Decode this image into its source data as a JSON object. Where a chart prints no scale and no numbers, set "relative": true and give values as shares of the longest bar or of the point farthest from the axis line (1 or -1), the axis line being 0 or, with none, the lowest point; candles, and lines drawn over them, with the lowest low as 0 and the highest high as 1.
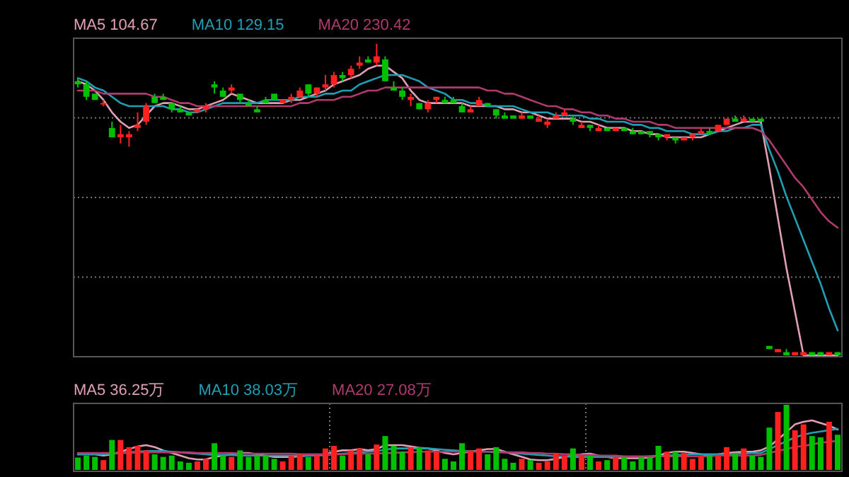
{
  "chart_data": [
    {
      "type": "candlestick",
      "relative": true,
      "grid": "y",
      "legend": "top left",
      "categories": [
        null,
        null,
        null,
        null,
        null,
        null,
        null,
        null,
        null,
        null,
        null,
        null,
        null,
        null,
        null,
        null,
        null,
        null,
        null,
        null,
        null,
        null,
        null,
        null,
        null,
        null,
        null,
        null,
        null,
        null,
        null,
        null,
        null,
        null,
        null,
        null,
        null,
        null,
        null,
        null,
        null,
        null,
        null,
        null,
        null,
        null,
        null,
        null,
        null,
        null,
        null,
        null,
        null,
        null,
        null,
        null,
        null,
        null,
        null,
        null,
        null,
        null,
        null,
        null,
        null,
        null,
        null,
        null,
        null,
        null,
        null,
        null,
        null,
        null,
        null,
        null,
        null,
        null,
        null,
        null,
        null,
        null,
        null,
        null,
        null,
        null,
        null,
        null,
        null,
        null
      ],
      "ohlc": [
        [
          0.88,
          0.89,
          0.86,
          0.87
        ],
        [
          0.87,
          0.88,
          0.82,
          0.83
        ],
        [
          0.84,
          0.84,
          0.82,
          0.82
        ],
        [
          0.81,
          0.82,
          0.8,
          0.81
        ],
        [
          0.73,
          0.75,
          0.7,
          0.7
        ],
        [
          0.7,
          0.74,
          0.68,
          0.71
        ],
        [
          0.7,
          0.72,
          0.67,
          0.71
        ],
        [
          0.73,
          0.78,
          0.72,
          0.74
        ],
        [
          0.75,
          0.81,
          0.74,
          0.8
        ],
        [
          0.83,
          0.84,
          0.81,
          0.81
        ],
        [
          0.83,
          0.84,
          0.82,
          0.82
        ],
        [
          0.81,
          0.81,
          0.78,
          0.79
        ],
        [
          0.79,
          0.8,
          0.78,
          0.78
        ],
        [
          0.78,
          0.78,
          0.77,
          0.77
        ],
        [
          0.78,
          0.79,
          0.78,
          0.79
        ],
        [
          0.79,
          0.81,
          0.78,
          0.8
        ],
        [
          0.87,
          0.88,
          0.84,
          0.86
        ],
        [
          0.85,
          0.86,
          0.83,
          0.83
        ],
        [
          0.85,
          0.87,
          0.84,
          0.86
        ],
        [
          0.84,
          0.84,
          0.81,
          0.82
        ],
        [
          0.81,
          0.82,
          0.8,
          0.8
        ],
        [
          0.79,
          0.8,
          0.78,
          0.78
        ],
        [
          0.82,
          0.83,
          0.81,
          0.81
        ],
        [
          0.84,
          0.84,
          0.82,
          0.82
        ],
        [
          0.81,
          0.82,
          0.81,
          0.82
        ],
        [
          0.82,
          0.84,
          0.81,
          0.83
        ],
        [
          0.83,
          0.86,
          0.83,
          0.85
        ],
        [
          0.87,
          0.87,
          0.83,
          0.84
        ],
        [
          0.84,
          0.86,
          0.83,
          0.86
        ],
        [
          0.86,
          0.9,
          0.85,
          0.87
        ],
        [
          0.87,
          0.91,
          0.86,
          0.9
        ],
        [
          0.9,
          0.91,
          0.88,
          0.89
        ],
        [
          0.9,
          0.93,
          0.89,
          0.92
        ],
        [
          0.93,
          0.96,
          0.92,
          0.94
        ],
        [
          0.95,
          0.96,
          0.94,
          0.94
        ],
        [
          0.94,
          1,
          0.93,
          0.96
        ],
        [
          0.95,
          0.96,
          0.88,
          0.88
        ],
        [
          0.86,
          0.88,
          0.85,
          0.85
        ],
        [
          0.85,
          0.86,
          0.82,
          0.83
        ],
        [
          0.82,
          0.84,
          0.8,
          0.83
        ],
        [
          0.81,
          0.81,
          0.79,
          0.79
        ],
        [
          0.79,
          0.82,
          0.78,
          0.81
        ],
        [
          0.82,
          0.83,
          0.81,
          0.83
        ],
        [
          0.82,
          0.83,
          0.81,
          0.81
        ],
        [
          0.82,
          0.83,
          0.81,
          0.81
        ],
        [
          0.8,
          0.81,
          0.78,
          0.78
        ],
        [
          0.78,
          0.8,
          0.78,
          0.79
        ],
        [
          0.8,
          0.83,
          0.8,
          0.82
        ],
        [
          0.81,
          0.81,
          0.8,
          0.8
        ],
        [
          0.79,
          0.79,
          0.76,
          0.77
        ],
        [
          0.77,
          0.78,
          0.76,
          0.76
        ],
        [
          0.77,
          0.77,
          0.76,
          0.76
        ],
        [
          0.76,
          0.78,
          0.76,
          0.77
        ],
        [
          0.77,
          0.77,
          0.76,
          0.76
        ],
        [
          0.75,
          0.77,
          0.75,
          0.76
        ],
        [
          0.74,
          0.76,
          0.73,
          0.75
        ],
        [
          0.76,
          0.78,
          0.76,
          0.77
        ],
        [
          0.77,
          0.79,
          0.77,
          0.78
        ],
        [
          0.76,
          0.77,
          0.74,
          0.75
        ],
        [
          0.73,
          0.75,
          0.73,
          0.74
        ],
        [
          0.74,
          0.74,
          0.72,
          0.73
        ],
        [
          0.72,
          0.74,
          0.72,
          0.73
        ],
        [
          0.73,
          0.73,
          0.72,
          0.72
        ],
        [
          0.72,
          0.73,
          0.72,
          0.73
        ],
        [
          0.73,
          0.73,
          0.72,
          0.72
        ],
        [
          0.72,
          0.73,
          0.71,
          0.71
        ],
        [
          0.72,
          0.72,
          0.71,
          0.71
        ],
        [
          0.72,
          0.72,
          0.7,
          0.71
        ],
        [
          0.71,
          0.71,
          0.69,
          0.7
        ],
        [
          0.7,
          0.71,
          0.69,
          0.71
        ],
        [
          0.7,
          0.7,
          0.68,
          0.69
        ],
        [
          0.69,
          0.7,
          0.69,
          0.7
        ],
        [
          0.7,
          0.71,
          0.69,
          0.71
        ],
        [
          0.71,
          0.73,
          0.71,
          0.72
        ],
        [
          0.72,
          0.73,
          0.71,
          0.71
        ],
        [
          0.72,
          0.74,
          0.72,
          0.74
        ],
        [
          0.74,
          0.76,
          0.74,
          0.76
        ],
        [
          0.76,
          0.77,
          0.75,
          0.75
        ],
        [
          0.75,
          0.77,
          0.75,
          0.76
        ],
        [
          0.76,
          0.76,
          0.75,
          0.75
        ],
        [
          0.76,
          0.76,
          0.75,
          0.75
        ],
        [
          0.03,
          0.03,
          0.02,
          0.02
        ],
        [
          0.01,
          0.02,
          0.01,
          0.02
        ],
        [
          0.01,
          0.02,
          0,
          0
        ],
        [
          0,
          0.01,
          0,
          0.01
        ],
        [
          0,
          0.01,
          0,
          0.01
        ],
        [
          0.01,
          0.01,
          0,
          0
        ],
        [
          0.01,
          0.01,
          0,
          0
        ],
        [
          0,
          0.01,
          0,
          0.01
        ],
        [
          0.01,
          0.01,
          0,
          0
        ]
      ],
      "colors": [
        "#00c000",
        "#00c000",
        "#00c000",
        "#ff2020",
        "#00c000",
        "#ff2020",
        "#ff2020",
        "#ff2020",
        "#ff2020",
        "#00c000",
        "#00c000",
        "#00c000",
        "#00c000",
        "#00c000",
        "#ff2020",
        "#ff2020",
        "#00c000",
        "#00c000",
        "#ff2020",
        "#00c000",
        "#00c000",
        "#00c000",
        "#00c000",
        "#00c000",
        "#ff2020",
        "#ff2020",
        "#ff2020",
        "#00c000",
        "#ff2020",
        "#ff2020",
        "#ff2020",
        "#00c000",
        "#ff2020",
        "#ff2020",
        "#00c000",
        "#ff2020",
        "#00c000",
        "#00c000",
        "#00c000",
        "#ff2020",
        "#00c000",
        "#ff2020",
        "#ff2020",
        "#00c000",
        "#00c000",
        "#00c000",
        "#ff2020",
        "#ff2020",
        "#00c000",
        "#00c000",
        "#00c000",
        "#00c000",
        "#ff2020",
        "#00c000",
        "#ff2020",
        "#ff2020",
        "#ff2020",
        "#ff2020",
        "#00c000",
        "#ff2020",
        "#00c000",
        "#ff2020",
        "#00c000",
        "#ff2020",
        "#00c000",
        "#00c000",
        "#00c000",
        "#00c000",
        "#00c000",
        "#ff2020",
        "#00c000",
        "#ff2020",
        "#ff2020",
        "#ff2020",
        "#00c000",
        "#ff2020",
        "#ff2020",
        "#00c000",
        "#ff2020",
        "#00c000",
        "#00c000",
        "#00c000",
        "#ff2020",
        "#00c000",
        "#ff2020",
        "#ff2020",
        "#00c000",
        "#00c000",
        "#ff2020",
        "#00c000"
      ],
      "series": [
        {
          "type": "line",
          "name": "MA5 104.67",
          "color": "#e0a0b4",
          "values": [
            0.88,
            0.87,
            0.85,
            0.82,
            0.78,
            0.75,
            0.73,
            0.74,
            0.77,
            0.8,
            0.81,
            0.81,
            0.8,
            0.79,
            0.79,
            0.8,
            0.81,
            0.82,
            0.84,
            0.83,
            0.82,
            0.81,
            0.81,
            0.81,
            0.81,
            0.82,
            0.82,
            0.83,
            0.84,
            0.85,
            0.87,
            0.88,
            0.89,
            0.9,
            0.92,
            0.93,
            0.93,
            0.91,
            0.89,
            0.85,
            0.82,
            0.81,
            0.81,
            0.81,
            0.81,
            0.81,
            0.8,
            0.8,
            0.8,
            0.8,
            0.79,
            0.79,
            0.78,
            0.78,
            0.77,
            0.76,
            0.76,
            0.76,
            0.76,
            0.75,
            0.75,
            0.74,
            0.73,
            0.73,
            0.73,
            0.72,
            0.72,
            0.71,
            0.71,
            0.7,
            0.7,
            0.7,
            0.7,
            0.7,
            0.71,
            0.72,
            0.73,
            0.74,
            0.75,
            0.75,
            0.75,
            0.6,
            0.44,
            0.28,
            0.14,
            0,
            0,
            0,
            0,
            0
          ]
        },
        {
          "type": "line",
          "name": "MA10 129.15",
          "color": "#1f9fb3",
          "values": [
            0.89,
            0.88,
            0.86,
            0.85,
            0.83,
            0.81,
            0.8,
            0.8,
            0.8,
            0.8,
            0.8,
            0.79,
            0.79,
            0.78,
            0.78,
            0.79,
            0.8,
            0.81,
            0.81,
            0.81,
            0.81,
            0.81,
            0.82,
            0.82,
            0.82,
            0.82,
            0.83,
            0.83,
            0.83,
            0.84,
            0.84,
            0.85,
            0.85,
            0.87,
            0.88,
            0.89,
            0.9,
            0.9,
            0.9,
            0.89,
            0.88,
            0.86,
            0.85,
            0.84,
            0.82,
            0.82,
            0.81,
            0.81,
            0.8,
            0.8,
            0.8,
            0.8,
            0.79,
            0.78,
            0.78,
            0.78,
            0.77,
            0.77,
            0.77,
            0.77,
            0.76,
            0.76,
            0.75,
            0.75,
            0.75,
            0.74,
            0.74,
            0.73,
            0.73,
            0.72,
            0.72,
            0.72,
            0.71,
            0.71,
            0.71,
            0.72,
            0.72,
            0.73,
            0.73,
            0.74,
            0.74,
            0.66,
            0.59,
            0.51,
            0.44,
            0.37,
            0.3,
            0.23,
            0.15,
            0.08
          ]
        },
        {
          "type": "line",
          "name": "MA20 230.42",
          "color": "#b03a6e",
          "values": [
            0.85,
            0.85,
            0.85,
            0.84,
            0.84,
            0.84,
            0.84,
            0.84,
            0.84,
            0.83,
            0.83,
            0.82,
            0.81,
            0.81,
            0.8,
            0.8,
            0.8,
            0.8,
            0.8,
            0.8,
            0.8,
            0.8,
            0.8,
            0.8,
            0.8,
            0.8,
            0.81,
            0.81,
            0.82,
            0.82,
            0.82,
            0.83,
            0.83,
            0.84,
            0.85,
            0.85,
            0.86,
            0.86,
            0.86,
            0.86,
            0.86,
            0.86,
            0.86,
            0.86,
            0.86,
            0.86,
            0.86,
            0.86,
            0.85,
            0.85,
            0.84,
            0.84,
            0.83,
            0.82,
            0.81,
            0.8,
            0.8,
            0.79,
            0.79,
            0.78,
            0.78,
            0.77,
            0.77,
            0.76,
            0.76,
            0.75,
            0.75,
            0.75,
            0.74,
            0.74,
            0.73,
            0.73,
            0.73,
            0.73,
            0.73,
            0.73,
            0.73,
            0.73,
            0.73,
            0.73,
            0.72,
            0.69,
            0.65,
            0.61,
            0.57,
            0.54,
            0.5,
            0.46,
            0.43,
            0.41
          ]
        }
      ]
    },
    {
      "type": "bar",
      "relative": true,
      "grid": "x",
      "legend": "top left",
      "categories": [
        null,
        null,
        null,
        null,
        null,
        null,
        null,
        null,
        null,
        null,
        null,
        null,
        null,
        null,
        null,
        null,
        null,
        null,
        null,
        null,
        null,
        null,
        null,
        null,
        null,
        null,
        null,
        null,
        null,
        null,
        null,
        null,
        null,
        null,
        null,
        null,
        null,
        null,
        null,
        null,
        null,
        null,
        null,
        null,
        null,
        null,
        null,
        null,
        null,
        null,
        null,
        null,
        null,
        null,
        null,
        null,
        null,
        null,
        null,
        null,
        null,
        null,
        null,
        null,
        null,
        null,
        null,
        null,
        null,
        null,
        null,
        null,
        null,
        null,
        null,
        null,
        null,
        null,
        null,
        null,
        null,
        null,
        null,
        null,
        null,
        null,
        null,
        null,
        null,
        null
      ],
      "values": [
        0.19,
        0.22,
        0.2,
        0.15,
        0.46,
        0.46,
        0.35,
        0.37,
        0.3,
        0.24,
        0.2,
        0.22,
        0.13,
        0.11,
        0.13,
        0.17,
        0.41,
        0.22,
        0.2,
        0.3,
        0.2,
        0.22,
        0.22,
        0.17,
        0.13,
        0.22,
        0.24,
        0.2,
        0.22,
        0.33,
        0.37,
        0.22,
        0.3,
        0.33,
        0.24,
        0.39,
        0.52,
        0.37,
        0.28,
        0.35,
        0.35,
        0.3,
        0.28,
        0.17,
        0.13,
        0.41,
        0.3,
        0.33,
        0.24,
        0.35,
        0.17,
        0.11,
        0.17,
        0.15,
        0.11,
        0.13,
        0.26,
        0.22,
        0.33,
        0.22,
        0.22,
        0.13,
        0.15,
        0.2,
        0.2,
        0.13,
        0.2,
        0.2,
        0.37,
        0.28,
        0.28,
        0.26,
        0.17,
        0.22,
        0.22,
        0.22,
        0.35,
        0.26,
        0.33,
        0.22,
        0.2,
        0.65,
        0.89,
        1,
        0.61,
        0.7,
        0.52,
        0.5,
        0.74,
        0.54
      ],
      "colors": [
        "#00c000",
        "#00c000",
        "#00c000",
        "#ff2020",
        "#00c000",
        "#ff2020",
        "#ff2020",
        "#ff2020",
        "#ff2020",
        "#00c000",
        "#00c000",
        "#00c000",
        "#00c000",
        "#00c000",
        "#ff2020",
        "#ff2020",
        "#00c000",
        "#00c000",
        "#ff2020",
        "#00c000",
        "#00c000",
        "#00c000",
        "#00c000",
        "#00c000",
        "#ff2020",
        "#ff2020",
        "#ff2020",
        "#00c000",
        "#ff2020",
        "#ff2020",
        "#ff2020",
        "#00c000",
        "#ff2020",
        "#ff2020",
        "#00c000",
        "#ff2020",
        "#00c000",
        "#00c000",
        "#00c000",
        "#ff2020",
        "#00c000",
        "#ff2020",
        "#ff2020",
        "#00c000",
        "#00c000",
        "#00c000",
        "#ff2020",
        "#ff2020",
        "#00c000",
        "#00c000",
        "#00c000",
        "#00c000",
        "#ff2020",
        "#00c000",
        "#ff2020",
        "#ff2020",
        "#ff2020",
        "#ff2020",
        "#00c000",
        "#ff2020",
        "#00c000",
        "#ff2020",
        "#00c000",
        "#ff2020",
        "#00c000",
        "#00c000",
        "#00c000",
        "#00c000",
        "#00c000",
        "#ff2020",
        "#00c000",
        "#ff2020",
        "#ff2020",
        "#ff2020",
        "#00c000",
        "#ff2020",
        "#ff2020",
        "#00c000",
        "#ff2020",
        "#00c000",
        "#00c000",
        "#00c000",
        "#ff2020",
        "#00c000",
        "#ff2020",
        "#ff2020",
        "#00c000",
        "#00c000",
        "#ff2020",
        "#00c000"
      ],
      "series": [
        {
          "type": "line",
          "name": "MA5 36.25万",
          "color": "#e0a0b4",
          "values": [
            0.24,
            0.24,
            0.24,
            0.22,
            0.24,
            0.28,
            0.32,
            0.36,
            0.38,
            0.35,
            0.3,
            0.26,
            0.22,
            0.18,
            0.16,
            0.16,
            0.2,
            0.22,
            0.24,
            0.26,
            0.26,
            0.24,
            0.22,
            0.2,
            0.2,
            0.2,
            0.21,
            0.22,
            0.22,
            0.24,
            0.28,
            0.3,
            0.3,
            0.32,
            0.3,
            0.32,
            0.38,
            0.38,
            0.38,
            0.36,
            0.34,
            0.33,
            0.3,
            0.26,
            0.24,
            0.26,
            0.28,
            0.3,
            0.32,
            0.32,
            0.28,
            0.24,
            0.2,
            0.16,
            0.15,
            0.15,
            0.17,
            0.2,
            0.22,
            0.24,
            0.25,
            0.22,
            0.2,
            0.18,
            0.18,
            0.18,
            0.18,
            0.19,
            0.22,
            0.26,
            0.28,
            0.28,
            0.26,
            0.24,
            0.22,
            0.24,
            0.26,
            0.27,
            0.28,
            0.28,
            0.3,
            0.36,
            0.47,
            0.58,
            0.7,
            0.74,
            0.76,
            0.72,
            0.68,
            0.62
          ]
        },
        {
          "type": "line",
          "name": "MA10 38.03万",
          "color": "#1f9fb3",
          "values": [
            0.24,
            0.24,
            0.24,
            0.24,
            0.25,
            0.26,
            0.27,
            0.28,
            0.29,
            0.29,
            0.29,
            0.28,
            0.27,
            0.26,
            0.25,
            0.24,
            0.23,
            0.23,
            0.23,
            0.22,
            0.22,
            0.22,
            0.22,
            0.22,
            0.22,
            0.22,
            0.22,
            0.22,
            0.22,
            0.23,
            0.24,
            0.25,
            0.26,
            0.27,
            0.28,
            0.29,
            0.31,
            0.33,
            0.33,
            0.33,
            0.33,
            0.33,
            0.32,
            0.31,
            0.3,
            0.29,
            0.29,
            0.28,
            0.28,
            0.27,
            0.27,
            0.26,
            0.25,
            0.24,
            0.23,
            0.22,
            0.21,
            0.21,
            0.2,
            0.2,
            0.2,
            0.2,
            0.2,
            0.2,
            0.2,
            0.2,
            0.2,
            0.21,
            0.22,
            0.22,
            0.23,
            0.23,
            0.24,
            0.24,
            0.24,
            0.24,
            0.24,
            0.25,
            0.25,
            0.26,
            0.26,
            0.32,
            0.38,
            0.44,
            0.5,
            0.54,
            0.57,
            0.59,
            0.61,
            0.63
          ]
        },
        {
          "type": "line",
          "name": "MA20 27.08万",
          "color": "#b03a6e",
          "values": [
            0.26,
            0.26,
            0.26,
            0.26,
            0.26,
            0.26,
            0.26,
            0.27,
            0.27,
            0.27,
            0.27,
            0.27,
            0.27,
            0.27,
            0.26,
            0.26,
            0.26,
            0.26,
            0.26,
            0.25,
            0.25,
            0.25,
            0.25,
            0.25,
            0.25,
            0.25,
            0.24,
            0.24,
            0.24,
            0.24,
            0.24,
            0.24,
            0.25,
            0.25,
            0.25,
            0.25,
            0.26,
            0.26,
            0.27,
            0.27,
            0.28,
            0.28,
            0.28,
            0.28,
            0.28,
            0.28,
            0.28,
            0.28,
            0.28,
            0.28,
            0.27,
            0.27,
            0.27,
            0.26,
            0.26,
            0.25,
            0.25,
            0.24,
            0.24,
            0.23,
            0.23,
            0.22,
            0.22,
            0.22,
            0.21,
            0.21,
            0.21,
            0.21,
            0.21,
            0.21,
            0.21,
            0.21,
            0.21,
            0.21,
            0.21,
            0.22,
            0.22,
            0.22,
            0.22,
            0.22,
            0.23,
            0.26,
            0.29,
            0.32,
            0.35,
            0.37,
            0.39,
            0.42,
            0.43,
            0.45
          ]
        }
      ]
    }
  ]
}
